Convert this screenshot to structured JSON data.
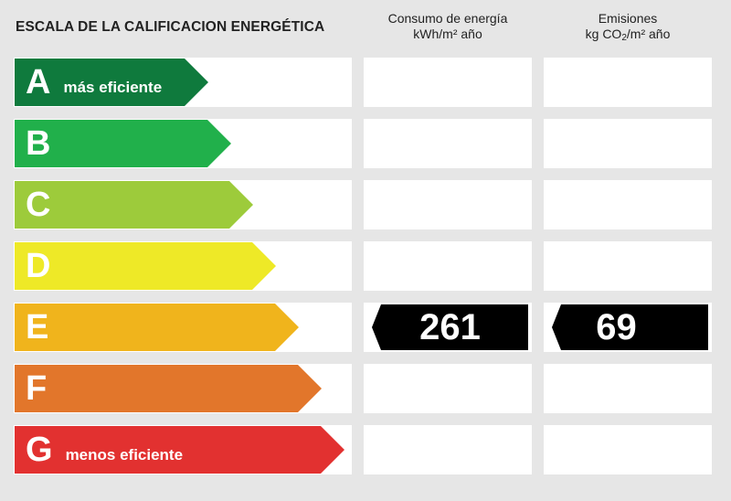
{
  "title": "ESCALA DE LA CALIFICACION ENERGÉTICA",
  "consumption_header": {
    "line1": "Consumo de energía",
    "line2": "kWh/m² año"
  },
  "emissions_header": {
    "line1": "Emisiones",
    "line2_pre": "kg CO",
    "line2_sub": "2",
    "line2_post": "/m² año"
  },
  "ratings": [
    {
      "letter": "A",
      "note": "más eficiente",
      "color": "#0f7a3d"
    },
    {
      "letter": "B",
      "note": "",
      "color": "#21b04b"
    },
    {
      "letter": "C",
      "note": "",
      "color": "#9dcb3b"
    },
    {
      "letter": "D",
      "note": "",
      "color": "#eee927"
    },
    {
      "letter": "E",
      "note": "",
      "color": "#f0b41c"
    },
    {
      "letter": "F",
      "note": "",
      "color": "#e2762b"
    },
    {
      "letter": "G",
      "note": "menos eficiente",
      "color": "#e23130"
    }
  ],
  "current_rating": "E",
  "consumption_value": "261",
  "emissions_value": "69"
}
